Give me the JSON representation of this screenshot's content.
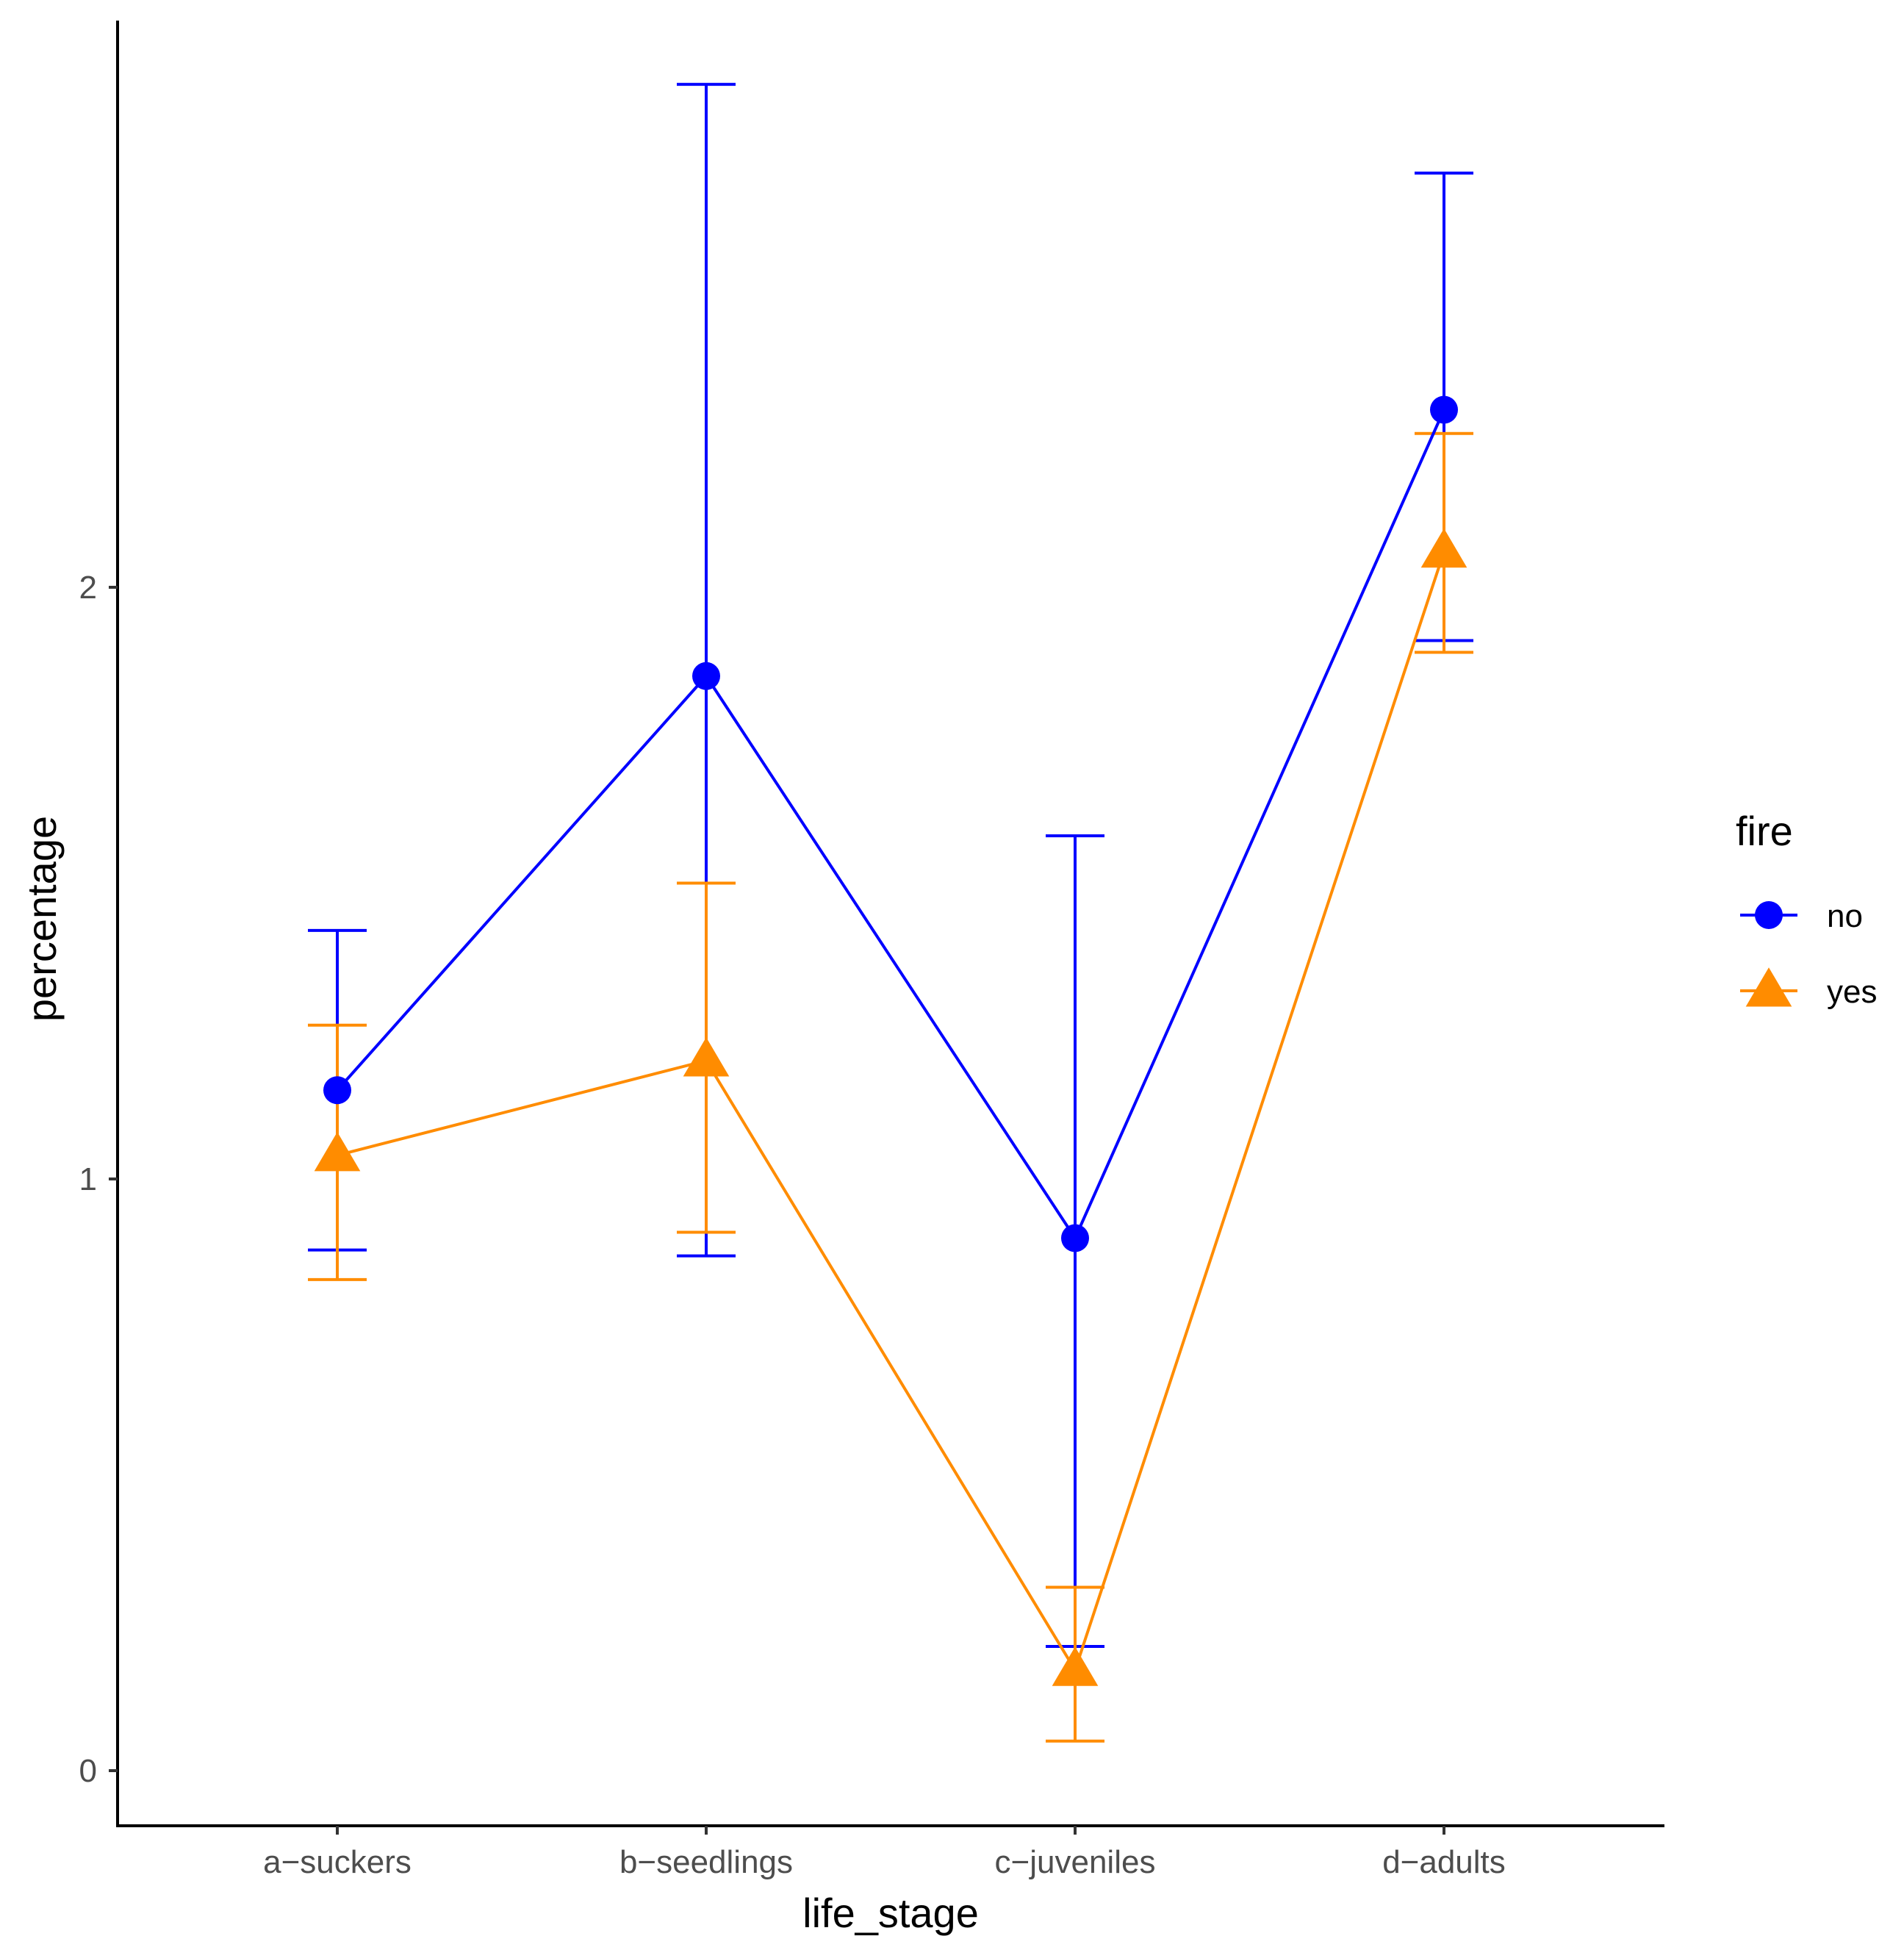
{
  "chart_data": {
    "type": "line",
    "title": "",
    "xlabel": "life_stage",
    "ylabel": "percentage",
    "categories": [
      "a−suckers",
      "b−seedlings",
      "c−juveniles",
      "d−adults"
    ],
    "yticks": [
      0,
      1,
      2
    ],
    "ylim": [
      -0.09,
      2.97
    ],
    "grid": false,
    "legend": {
      "title": "fire",
      "position": "right"
    },
    "series": [
      {
        "name": "no",
        "color": "#0000FF",
        "marker": "circle",
        "values": [
          1.15,
          1.85,
          0.9,
          2.3
        ],
        "lower": [
          0.88,
          0.87,
          0.21,
          1.91
        ],
        "upper": [
          1.42,
          2.85,
          1.58,
          2.7
        ]
      },
      {
        "name": "yes",
        "color": "#FF8C00",
        "marker": "triangle",
        "values": [
          1.04,
          1.2,
          0.17,
          2.06
        ],
        "lower": [
          0.83,
          0.91,
          0.05,
          1.89
        ],
        "upper": [
          1.26,
          1.5,
          0.31,
          2.26
        ]
      }
    ]
  }
}
